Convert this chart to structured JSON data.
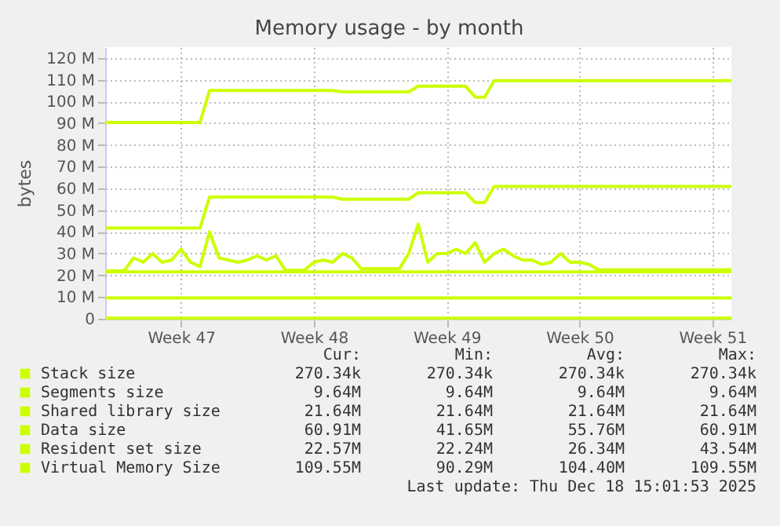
{
  "chart_data": {
    "type": "line",
    "title": "Memory usage - by month",
    "ylabel": "bytes",
    "categories": [
      null,
      null,
      null,
      null,
      null,
      null,
      null,
      null,
      "Week 47",
      null,
      null,
      null,
      null,
      null,
      null,
      null,
      null,
      null,
      null,
      null,
      null,
      null,
      "Week 48",
      null,
      null,
      null,
      null,
      null,
      null,
      null,
      null,
      null,
      null,
      null,
      null,
      null,
      "Week 49",
      null,
      null,
      null,
      null,
      null,
      null,
      null,
      null,
      null,
      null,
      null,
      null,
      null,
      "Week 50",
      null,
      null,
      null,
      null,
      null,
      null,
      null,
      null,
      null,
      null,
      null,
      null,
      null,
      "Week 51",
      null,
      null
    ],
    "ylim": [
      0,
      125
    ],
    "yticks": [
      0,
      {
        "value": 10,
        "label": "10 M"
      },
      {
        "value": 20,
        "label": "20 M"
      },
      {
        "value": 30,
        "label": "30 M"
      },
      {
        "value": 40,
        "label": "40 M"
      },
      {
        "value": 50,
        "label": "50 M"
      },
      {
        "value": 60,
        "label": "60 M"
      },
      {
        "value": 70,
        "label": "70 M"
      },
      {
        "value": 80,
        "label": "80 M"
      },
      {
        "value": 90,
        "label": "90 M"
      },
      {
        "value": 100,
        "label": "100 M"
      },
      {
        "value": 110,
        "label": "110 M"
      },
      {
        "value": 120,
        "label": "120 M"
      }
    ],
    "grid": true,
    "legend": "bottom",
    "line_style": "solid",
    "series": [
      {
        "name": "Stack size",
        "color": "#ccff00",
        "values": [
          0.3,
          0.3,
          0.3,
          0.3,
          0.3,
          0.3,
          0.3,
          0.3,
          0.3,
          0.3,
          0.3,
          0.3,
          0.3,
          0.3,
          0.3,
          0.3,
          0.3,
          0.3,
          0.3,
          0.3,
          0.3,
          0.3,
          0.3,
          0.3,
          0.3,
          0.3,
          0.3,
          0.3,
          0.3,
          0.3,
          0.3,
          0.3,
          0.3,
          0.3,
          0.3,
          0.3,
          0.3,
          0.3,
          0.3,
          0.3,
          0.3,
          0.3,
          0.3,
          0.3,
          0.3,
          0.3,
          0.3,
          0.3,
          0.3,
          0.3,
          0.3,
          0.3,
          0.3,
          0.3,
          0.3,
          0.3,
          0.3,
          0.3,
          0.3,
          0.3,
          0.3,
          0.3,
          0.3,
          0.3,
          0.3,
          0.3,
          0.3
        ]
      },
      {
        "name": "Segments size",
        "color": "#ccff00",
        "values": [
          9.6,
          9.6,
          9.6,
          9.6,
          9.6,
          9.6,
          9.6,
          9.6,
          9.6,
          9.6,
          9.6,
          9.6,
          9.6,
          9.6,
          9.6,
          9.6,
          9.6,
          9.6,
          9.6,
          9.6,
          9.6,
          9.6,
          9.6,
          9.6,
          9.6,
          9.6,
          9.6,
          9.6,
          9.6,
          9.6,
          9.6,
          9.6,
          9.6,
          9.6,
          9.6,
          9.6,
          9.6,
          9.6,
          9.6,
          9.6,
          9.6,
          9.6,
          9.6,
          9.6,
          9.6,
          9.6,
          9.6,
          9.6,
          9.6,
          9.6,
          9.6,
          9.6,
          9.6,
          9.6,
          9.6,
          9.6,
          9.6,
          9.6,
          9.6,
          9.6,
          9.6,
          9.6,
          9.6,
          9.6,
          9.6,
          9.6,
          9.6
        ]
      },
      {
        "name": "Shared library size",
        "color": "#ccff00",
        "values": [
          21.6,
          21.6,
          21.6,
          21.6,
          21.6,
          21.6,
          21.6,
          21.6,
          21.6,
          21.6,
          21.6,
          21.6,
          21.6,
          21.6,
          21.6,
          21.6,
          21.6,
          21.6,
          21.6,
          21.6,
          21.6,
          21.6,
          21.6,
          21.6,
          21.6,
          21.6,
          21.6,
          21.6,
          21.6,
          21.6,
          21.6,
          21.6,
          21.6,
          21.6,
          21.6,
          21.6,
          21.6,
          21.6,
          21.6,
          21.6,
          21.6,
          21.6,
          21.6,
          21.6,
          21.6,
          21.6,
          21.6,
          21.6,
          21.6,
          21.6,
          21.6,
          21.6,
          21.6,
          21.6,
          21.6,
          21.6,
          21.6,
          21.6,
          21.6,
          21.6,
          21.6,
          21.6,
          21.6,
          21.6,
          21.6,
          21.6,
          21.6
        ]
      },
      {
        "name": "Data size",
        "color": "#ccff00",
        "values": [
          41.7,
          41.7,
          41.7,
          41.7,
          41.7,
          41.7,
          41.7,
          41.7,
          41.7,
          41.7,
          41.7,
          56,
          56,
          56,
          56,
          56,
          56,
          56,
          56,
          56,
          56,
          56,
          56,
          56,
          56,
          55,
          55,
          55,
          55,
          55,
          55,
          55,
          55,
          58,
          58,
          58,
          58,
          58,
          58,
          53.5,
          53.5,
          60.9,
          60.9,
          60.9,
          60.9,
          60.9,
          60.9,
          60.9,
          60.9,
          60.9,
          60.9,
          60.9,
          60.9,
          60.9,
          60.9,
          60.9,
          60.9,
          60.9,
          60.9,
          60.9,
          60.9,
          60.9,
          60.9,
          60.9,
          60.9,
          60.9,
          60.9
        ]
      },
      {
        "name": "Resident set size",
        "color": "#ccff00",
        "values": [
          22,
          22,
          22,
          28,
          26,
          30,
          26,
          27,
          32,
          26,
          24,
          40,
          28,
          27,
          26,
          27,
          29,
          27,
          29,
          22.3,
          22.3,
          22.3,
          26,
          27,
          26,
          30,
          28,
          23,
          23,
          23,
          23,
          23,
          30,
          43.5,
          26,
          30,
          30,
          32,
          30,
          35,
          26,
          30,
          32,
          29,
          27,
          27,
          25,
          26,
          30,
          26,
          26,
          25,
          22.5,
          22.5,
          22.5,
          22.5,
          22.5,
          22.5,
          22.5,
          22.5,
          22.5,
          22.5,
          22.5,
          22.5,
          22.5,
          22.5,
          22.6
        ]
      },
      {
        "name": "Virtual Memory Size",
        "color": "#ccff00",
        "values": [
          90.3,
          90.3,
          90.3,
          90.3,
          90.3,
          90.3,
          90.3,
          90.3,
          90.3,
          90.3,
          90.3,
          105,
          105,
          105,
          105,
          105,
          105,
          105,
          105,
          105,
          105,
          105,
          105,
          105,
          105,
          104.4,
          104.4,
          104.4,
          104.4,
          104.4,
          104.4,
          104.4,
          104.4,
          107,
          107,
          107,
          107,
          107,
          107,
          102,
          102,
          109.6,
          109.6,
          109.6,
          109.6,
          109.6,
          109.6,
          109.6,
          109.6,
          109.6,
          109.6,
          109.6,
          109.6,
          109.6,
          109.6,
          109.6,
          109.6,
          109.6,
          109.6,
          109.6,
          109.6,
          109.6,
          109.6,
          109.6,
          109.6,
          109.6,
          109.6
        ]
      }
    ],
    "annotations": [
      "Cur:",
      "Min:",
      "Avg:",
      "Max:",
      "270.34k",
      "270.34k",
      "270.34k",
      "270.34k",
      "9.64M",
      "9.64M",
      "9.64M",
      "9.64M",
      "21.64M",
      "21.64M",
      "21.64M",
      "21.64M",
      "60.91M",
      "41.65M",
      "55.76M",
      "60.91M",
      "22.57M",
      "22.24M",
      "26.34M",
      "43.54M",
      "109.55M",
      "90.29M",
      "104.40M",
      "109.55M",
      "Last update: Thu Dec 18 15:01:53 2025"
    ]
  }
}
